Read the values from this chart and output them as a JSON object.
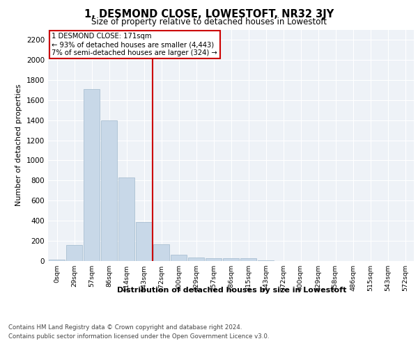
{
  "title": "1, DESMOND CLOSE, LOWESTOFT, NR32 3JY",
  "subtitle": "Size of property relative to detached houses in Lowestoft",
  "xlabel": "Distribution of detached houses by size in Lowestoft",
  "ylabel": "Number of detached properties",
  "bar_labels": [
    "0sqm",
    "29sqm",
    "57sqm",
    "86sqm",
    "114sqm",
    "143sqm",
    "172sqm",
    "200sqm",
    "229sqm",
    "257sqm",
    "286sqm",
    "315sqm",
    "343sqm",
    "372sqm",
    "400sqm",
    "429sqm",
    "458sqm",
    "486sqm",
    "515sqm",
    "543sqm",
    "572sqm"
  ],
  "bar_values": [
    15,
    160,
    1710,
    1400,
    830,
    390,
    165,
    65,
    35,
    25,
    25,
    25,
    10,
    0,
    0,
    0,
    0,
    0,
    0,
    0,
    0
  ],
  "bar_color": "#c8d8e8",
  "bar_edgecolor": "#a0b8cc",
  "property_label": "1 DESMOND CLOSE: 171sqm",
  "annotation_line1": "← 93% of detached houses are smaller (4,443)",
  "annotation_line2": "7% of semi-detached houses are larger (324) →",
  "vline_color": "#cc0000",
  "annotation_box_color": "#cc0000",
  "ylim": [
    0,
    2300
  ],
  "yticks": [
    0,
    200,
    400,
    600,
    800,
    1000,
    1200,
    1400,
    1600,
    1800,
    2000,
    2200
  ],
  "background_color": "#eef2f7",
  "footer_line1": "Contains HM Land Registry data © Crown copyright and database right 2024.",
  "footer_line2": "Contains public sector information licensed under the Open Government Licence v3.0."
}
